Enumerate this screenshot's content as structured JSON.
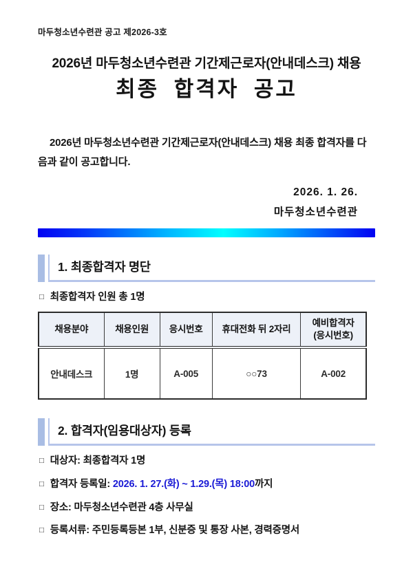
{
  "glyphs": {
    "bullet": "□"
  },
  "colors": {
    "accent_gradient_left": "#0202f2",
    "accent_gradient_mid": "#00ffff",
    "accent_gradient_right": "#0202f2",
    "heading_bar": "#a9bde4",
    "heading_underline": "#b6c5ea",
    "table_header_bg": "#edf1f8",
    "highlight_text": "#1a1ad6"
  },
  "doc": {
    "doc_number": "마두청소년수련관 공고 제2026-3호",
    "title_line1": "2026년 마두청소년수련관 기간제근로자(안내데스크) 채용",
    "title_line2": "최종 합격자 공고",
    "body_paragraph": "2026년 마두청소년수련관 기간제근로자(안내데스크) 채용 최종 합격자를 다음과 같이 공고합니다.",
    "date": "2026. 1. 26.",
    "org": "마두청소년수련관"
  },
  "section1": {
    "heading": "1. 최종합격자 명단",
    "bullet": "최종합격자 인원 총 1명",
    "table": {
      "headers": [
        "채용분야",
        "채용인원",
        "응시번호",
        "휴대전화 뒤 2자리",
        "예비합격자\n(응시번호)"
      ],
      "rows": [
        [
          "안내데스크",
          "1명",
          "A-005",
          "○○73",
          "A-002"
        ]
      ]
    }
  },
  "section2": {
    "heading": "2. 합격자(임용대상자) 등록",
    "bullets": [
      {
        "text": "대상자: 최종합격자 1명",
        "highlight": "",
        "suffix": ""
      },
      {
        "text": "합격자 등록일: ",
        "highlight": "2026. 1. 27.(화) ~ 1.29.(목) 18:00",
        "suffix": "까지"
      },
      {
        "text": "장소: 마두청소년수련관 4층 사무실",
        "highlight": "",
        "suffix": ""
      },
      {
        "text": "등록서류: 주민등록등본 1부, 신분증 및 통장 사본, 경력증명서",
        "highlight": "",
        "suffix": ""
      }
    ]
  }
}
